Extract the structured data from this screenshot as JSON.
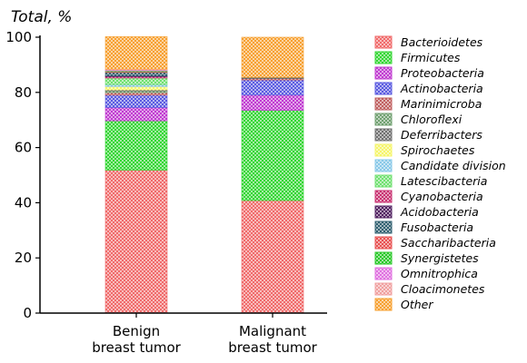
{
  "chart_data": {
    "type": "bar",
    "stacked": true,
    "ylabel": "Total, %",
    "ylim": [
      0,
      100
    ],
    "yticks": [
      0,
      20,
      40,
      60,
      80,
      100
    ],
    "categories": [
      [
        "Benign",
        "breast tumor"
      ],
      [
        "Malignant",
        "breast tumor"
      ]
    ],
    "legend_position": "right",
    "series": [
      {
        "name": "Bacterioidetes",
        "color": "#f06a6a",
        "values": [
          51.8,
          40.8
        ]
      },
      {
        "name": "Firmicutes",
        "color": "#33d633",
        "values": [
          17.9,
          32.7
        ]
      },
      {
        "name": "Proteobacteria",
        "color": "#c03ad0",
        "values": [
          4.8,
          5.5
        ]
      },
      {
        "name": "Actinobacteria",
        "color": "#5a5ae0",
        "values": [
          4.5,
          5.5
        ]
      },
      {
        "name": "Marinimicroba",
        "color": "#c06060",
        "values": [
          0.9,
          0.6
        ]
      },
      {
        "name": "Chloroflexi",
        "color": "#70a070",
        "values": [
          0.6,
          0.0
        ]
      },
      {
        "name": "Deferribacters",
        "color": "#707070",
        "values": [
          0.4,
          0.0
        ]
      },
      {
        "name": "Spirochaetes",
        "color": "#f5f56a",
        "values": [
          1.2,
          0.0
        ]
      },
      {
        "name": "Candidate division",
        "color": "#88c8e8",
        "values": [
          0.7,
          0.0
        ]
      },
      {
        "name": "Latescibacteria",
        "color": "#70e070",
        "values": [
          2.4,
          0.0
        ]
      },
      {
        "name": "Cyanobacteria",
        "color": "#c83070",
        "values": [
          0.5,
          0.0
        ]
      },
      {
        "name": "Acidobacteria",
        "color": "#502060",
        "values": [
          0.3,
          0.0
        ]
      },
      {
        "name": "Fusobacteria",
        "color": "#306070",
        "values": [
          1.2,
          0.3
        ]
      },
      {
        "name": "Saccharibacteria",
        "color": "#e85050",
        "values": [
          0.3,
          0.0
        ]
      },
      {
        "name": "Synergistetes",
        "color": "#28c828",
        "values": [
          0.3,
          0.0
        ]
      },
      {
        "name": "Omnitrophica",
        "color": "#e070e0",
        "values": [
          0.3,
          0.0
        ]
      },
      {
        "name": "Cloacimonetes",
        "color": "#f0a0a0",
        "values": [
          0.3,
          0.0
        ]
      },
      {
        "name": "Other",
        "color": "#f7a030",
        "values": [
          11.8,
          14.6
        ]
      }
    ]
  }
}
